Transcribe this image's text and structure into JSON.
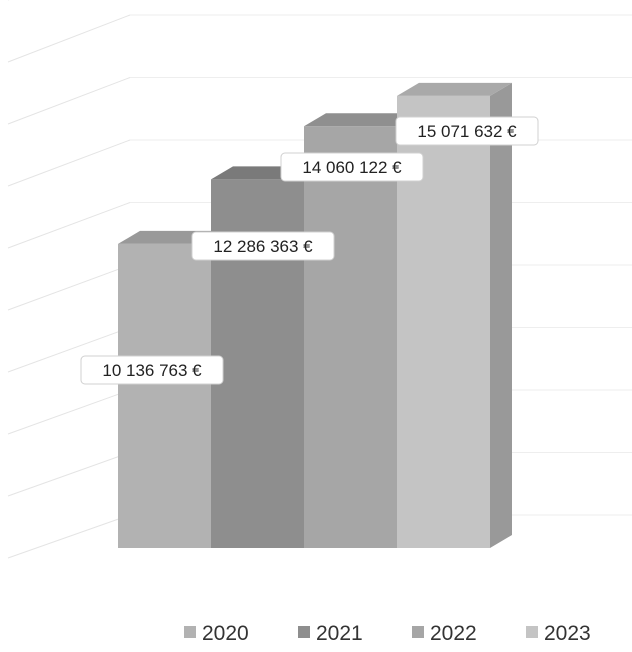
{
  "chart_data": {
    "type": "bar",
    "style": "3d-stepped-columns",
    "categories": [
      "2020",
      "2021",
      "2022",
      "2023"
    ],
    "series": [
      {
        "name": "2020",
        "values": [
          10136763,
          null,
          null,
          null
        ],
        "label": "10 136 763 €",
        "color": "#b2b2b2"
      },
      {
        "name": "2021",
        "values": [
          null,
          12286363,
          null,
          null
        ],
        "label": "12 286 363 €",
        "color": "#8e8e8e"
      },
      {
        "name": "2022",
        "values": [
          null,
          null,
          14060122,
          null
        ],
        "label": "14 060 122 €",
        "color": "#a6a6a6"
      },
      {
        "name": "2023",
        "values": [
          null,
          null,
          null,
          15071632
        ],
        "label": "15 071 632 €",
        "color": "#c4c4c4"
      }
    ],
    "values": [
      10136763,
      12286363,
      14060122,
      15071632
    ],
    "title": "",
    "xlabel": "",
    "ylabel": "",
    "ylim": [
      0,
      18000000
    ],
    "grid": true,
    "legend": "bottom-center"
  }
}
